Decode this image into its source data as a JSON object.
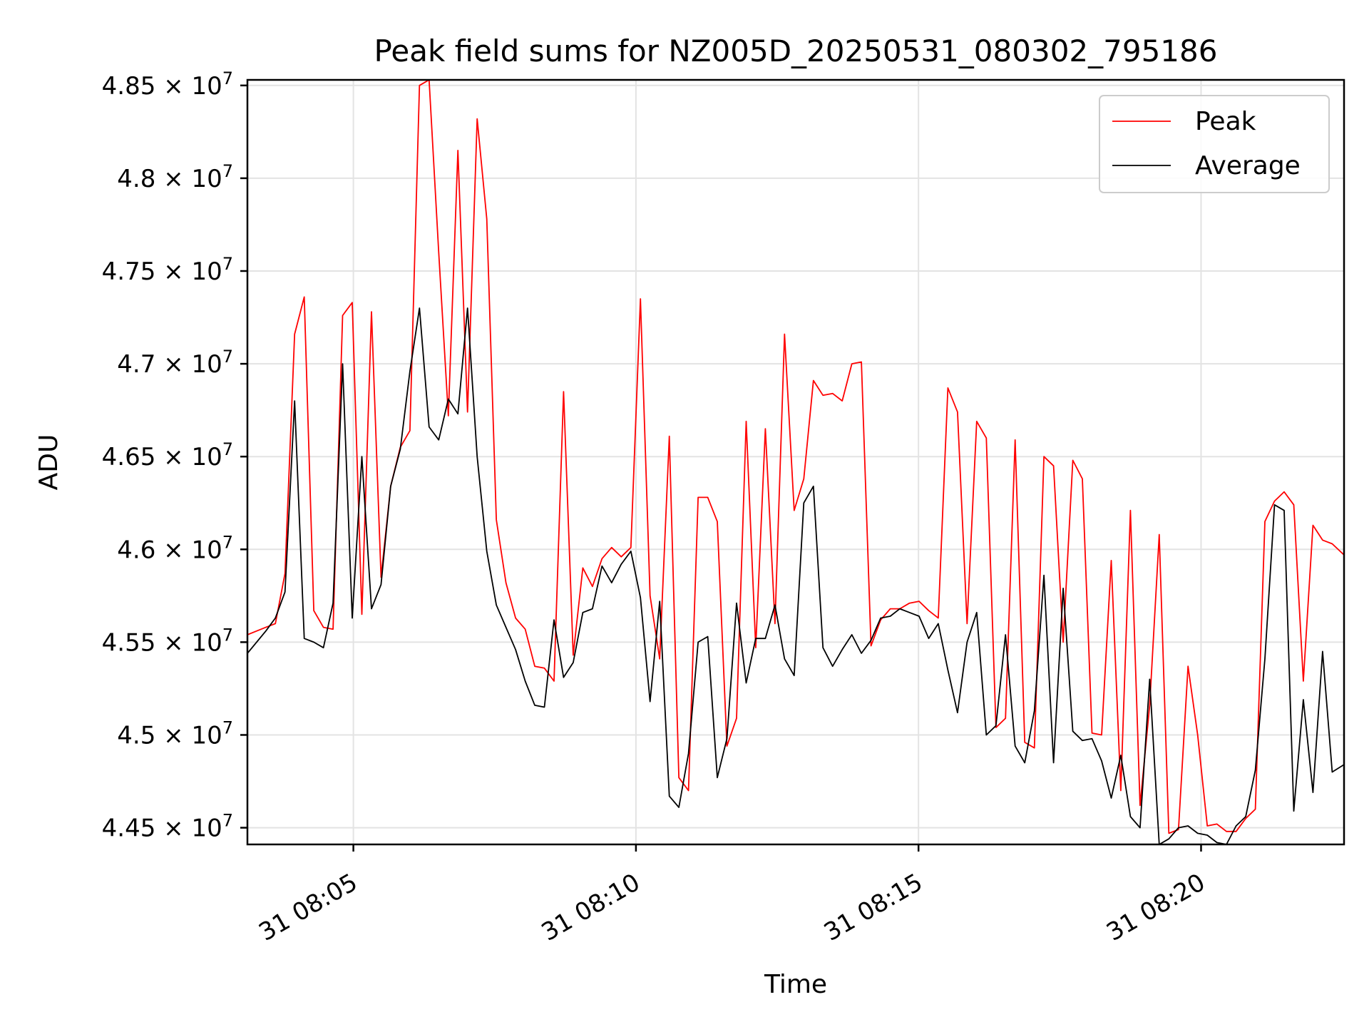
{
  "chart_data": {
    "type": "line",
    "title": "Peak field sums for NZ005D_20250531_080302_795186",
    "xlabel": "Time",
    "ylabel": "ADU",
    "x_unit": "minutes past 08:00",
    "xlim": [
      3.125,
      22.53
    ],
    "ylim": [
      44410000,
      48530000
    ],
    "x_ticks": [
      {
        "value": 5,
        "label": "31 08:05"
      },
      {
        "value": 10,
        "label": "31 08:10"
      },
      {
        "value": 15,
        "label": "31 08:15"
      },
      {
        "value": 20,
        "label": "31 08:20"
      }
    ],
    "y_ticks": [
      {
        "value": 44500000,
        "mantissa": "4.45"
      },
      {
        "value": 45000000,
        "mantissa": "4.5"
      },
      {
        "value": 45500000,
        "mantissa": "4.55"
      },
      {
        "value": 46000000,
        "mantissa": "4.6"
      },
      {
        "value": 46500000,
        "mantissa": "4.65"
      },
      {
        "value": 47000000,
        "mantissa": "4.7"
      },
      {
        "value": 47500000,
        "mantissa": "4.75"
      },
      {
        "value": 48000000,
        "mantissa": "4.8"
      },
      {
        "value": 48500000,
        "mantissa": "4.85"
      }
    ],
    "y_tick_suffix": "× 10",
    "y_tick_exponent": "7",
    "grid": true,
    "legend_position": "top-right",
    "series": [
      {
        "name": "Peak",
        "color": "#ff0000",
        "x": [
          3.125,
          3.45,
          3.62,
          3.79,
          3.96,
          4.13,
          4.3,
          4.47,
          4.64,
          4.81,
          4.98,
          5.15,
          5.32,
          5.49,
          5.66,
          5.83,
          6.0,
          6.17,
          6.34,
          6.51,
          6.68,
          6.85,
          7.02,
          7.19,
          7.36,
          7.53,
          7.7,
          7.87,
          8.04,
          8.21,
          8.38,
          8.55,
          8.72,
          8.89,
          9.06,
          9.23,
          9.4,
          9.57,
          9.74,
          9.91,
          10.08,
          10.25,
          10.42,
          10.59,
          10.76,
          10.93,
          11.1,
          11.27,
          11.44,
          11.61,
          11.78,
          11.95,
          12.12,
          12.29,
          12.46,
          12.63,
          12.8,
          12.97,
          13.14,
          13.31,
          13.48,
          13.65,
          13.82,
          13.99,
          14.16,
          14.33,
          14.5,
          14.67,
          14.84,
          15.01,
          15.18,
          15.35,
          15.52,
          15.69,
          15.86,
          16.03,
          16.2,
          16.37,
          16.54,
          16.71,
          16.88,
          17.05,
          17.22,
          17.39,
          17.56,
          17.73,
          17.9,
          18.07,
          18.24,
          18.41,
          18.58,
          18.75,
          18.92,
          19.09,
          19.26,
          19.43,
          19.6,
          19.77,
          19.94,
          20.11,
          20.28,
          20.45,
          20.62,
          20.79,
          20.96,
          21.13,
          21.3,
          21.47,
          21.64,
          21.81,
          21.98,
          22.15,
          22.32,
          22.53
        ],
        "y": [
          45540000,
          45580000,
          45600000,
          45870000,
          47160000,
          47360000,
          45670000,
          45580000,
          45570000,
          47260000,
          47330000,
          45650000,
          47280000,
          45850000,
          46340000,
          46550000,
          46640000,
          48500000,
          48530000,
          47600000,
          46720000,
          48150000,
          46740000,
          48320000,
          47780000,
          46160000,
          45820000,
          45630000,
          45570000,
          45370000,
          45360000,
          45290000,
          46850000,
          45430000,
          45900000,
          45800000,
          45950000,
          46010000,
          45960000,
          46010000,
          47350000,
          45750000,
          45410000,
          46610000,
          44770000,
          44700000,
          46280000,
          46280000,
          46150000,
          44940000,
          45090000,
          46690000,
          45470000,
          46650000,
          45600000,
          47160000,
          46210000,
          46380000,
          46910000,
          46830000,
          46840000,
          46800000,
          47000000,
          47010000,
          45480000,
          45620000,
          45680000,
          45680000,
          45710000,
          45720000,
          45670000,
          45630000,
          46870000,
          46740000,
          45600000,
          46690000,
          46600000,
          45040000,
          45090000,
          46590000,
          44960000,
          44930000,
          46500000,
          46450000,
          45500000,
          46480000,
          46380000,
          45010000,
          45000000,
          45940000,
          44700000,
          46210000,
          44620000,
          45160000,
          46080000,
          44470000,
          44490000,
          45370000,
          45000000,
          44510000,
          44520000,
          44480000,
          44480000,
          44550000,
          44600000,
          46150000,
          46260000,
          46310000,
          46240000,
          45290000,
          46130000,
          46050000,
          46030000,
          45970000
        ]
      },
      {
        "name": "Average",
        "color": "#000000",
        "x": [
          3.125,
          3.45,
          3.62,
          3.79,
          3.96,
          4.13,
          4.3,
          4.47,
          4.64,
          4.81,
          4.98,
          5.15,
          5.32,
          5.49,
          5.66,
          5.83,
          6.0,
          6.17,
          6.34,
          6.51,
          6.68,
          6.85,
          7.02,
          7.19,
          7.36,
          7.53,
          7.7,
          7.87,
          8.04,
          8.21,
          8.38,
          8.55,
          8.72,
          8.89,
          9.06,
          9.23,
          9.4,
          9.57,
          9.74,
          9.91,
          10.08,
          10.25,
          10.42,
          10.59,
          10.76,
          10.93,
          11.1,
          11.27,
          11.44,
          11.61,
          11.78,
          11.95,
          12.12,
          12.29,
          12.46,
          12.63,
          12.8,
          12.97,
          13.14,
          13.31,
          13.48,
          13.65,
          13.82,
          13.99,
          14.16,
          14.33,
          14.5,
          14.67,
          14.84,
          15.01,
          15.18,
          15.35,
          15.52,
          15.69,
          15.86,
          16.03,
          16.2,
          16.37,
          16.54,
          16.71,
          16.88,
          17.05,
          17.22,
          17.39,
          17.56,
          17.73,
          17.9,
          18.07,
          18.24,
          18.41,
          18.58,
          18.75,
          18.92,
          19.09,
          19.26,
          19.43,
          19.6,
          19.77,
          19.94,
          20.11,
          20.28,
          20.45,
          20.62,
          20.79,
          20.96,
          21.13,
          21.3,
          21.47,
          21.64,
          21.81,
          21.98,
          22.15,
          22.32,
          22.53
        ],
        "y": [
          45440000,
          45560000,
          45630000,
          45770000,
          46800000,
          45520000,
          45500000,
          45470000,
          45710000,
          47000000,
          45630000,
          46500000,
          45680000,
          45810000,
          46340000,
          46540000,
          46960000,
          47300000,
          46660000,
          46590000,
          46810000,
          46730000,
          47300000,
          46500000,
          45990000,
          45700000,
          45580000,
          45460000,
          45290000,
          45160000,
          45150000,
          45620000,
          45310000,
          45390000,
          45660000,
          45680000,
          45910000,
          45820000,
          45920000,
          45990000,
          45740000,
          45180000,
          45720000,
          44670000,
          44610000,
          44900000,
          45500000,
          45530000,
          44770000,
          44980000,
          45710000,
          45280000,
          45520000,
          45520000,
          45700000,
          45410000,
          45320000,
          46250000,
          46340000,
          45470000,
          45370000,
          45460000,
          45540000,
          45440000,
          45510000,
          45630000,
          45640000,
          45680000,
          45660000,
          45640000,
          45520000,
          45600000,
          45350000,
          45120000,
          45500000,
          45660000,
          45000000,
          45050000,
          45540000,
          44940000,
          44850000,
          45130000,
          45860000,
          44850000,
          45790000,
          45020000,
          44970000,
          44980000,
          44860000,
          44660000,
          44890000,
          44560000,
          44500000,
          45300000,
          44410000,
          44440000,
          44500000,
          44510000,
          44470000,
          44460000,
          44420000,
          44410000,
          44510000,
          44560000,
          44810000,
          45410000,
          46240000,
          46210000,
          44590000,
          45190000,
          44690000,
          45450000,
          44800000,
          44840000
        ]
      }
    ]
  }
}
